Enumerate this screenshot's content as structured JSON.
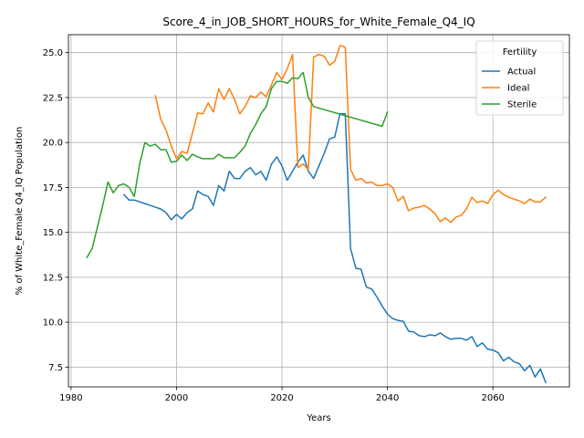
{
  "chart_data": {
    "type": "line",
    "title": "Score_4_in_JOB_SHORT_HOURS_for_White_Female_Q4_IQ",
    "xlabel": "Years",
    "ylabel": "% of White_Female Q4_IQ Population",
    "xlim": [
      1979.5,
      2074.5
    ],
    "ylim": [
      6.4,
      26.0
    ],
    "xticks": [
      1980,
      2000,
      2020,
      2040,
      2060
    ],
    "yticks": [
      7.5,
      10.0,
      12.5,
      15.0,
      17.5,
      20.0,
      22.5,
      25.0
    ],
    "ytick_labels": [
      "7.5",
      "10.0",
      "12.5",
      "15.0",
      "17.5",
      "20.0",
      "22.5",
      "25.0"
    ],
    "grid": true,
    "legend": {
      "title": "Fertility",
      "placement": "top-right"
    },
    "series": [
      {
        "name": "Actual",
        "color": "#1f77b4",
        "x": [
          1990,
          1991,
          1992,
          1993,
          1994,
          1995,
          1996,
          1997,
          1998,
          1999,
          2000,
          2001,
          2002,
          2003,
          2004,
          2005,
          2006,
          2007,
          2008,
          2009,
          2010,
          2011,
          2012,
          2013,
          2014,
          2015,
          2016,
          2017,
          2018,
          2019,
          2020,
          2021,
          2022,
          2023,
          2024,
          2025,
          2026,
          2027,
          2028,
          2029,
          2030,
          2031,
          2032,
          2033,
          2034,
          2035,
          2036,
          2037,
          2038,
          2039,
          2040,
          2041,
          2042,
          2043,
          2044,
          2045,
          2046,
          2047,
          2048,
          2049,
          2050,
          2051,
          2052,
          2053,
          2054,
          2055,
          2056,
          2057,
          2058,
          2059,
          2060,
          2061,
          2062,
          2063,
          2064,
          2065,
          2066,
          2067,
          2068,
          2069,
          2070
        ],
        "y": [
          17.1,
          16.8,
          16.8,
          16.7,
          16.6,
          16.5,
          16.4,
          16.3,
          16.1,
          15.7,
          16.0,
          15.75,
          16.1,
          16.3,
          17.3,
          17.1,
          17.0,
          16.5,
          17.6,
          17.3,
          18.4,
          18.0,
          18.0,
          18.4,
          18.6,
          18.2,
          18.4,
          17.9,
          18.8,
          19.2,
          18.7,
          17.9,
          18.4,
          18.9,
          19.3,
          18.4,
          18.0,
          18.7,
          19.4,
          20.2,
          20.3,
          21.6,
          21.6,
          14.1,
          13.0,
          12.95,
          11.95,
          11.85,
          11.4,
          10.9,
          10.45,
          10.2,
          10.1,
          10.05,
          9.5,
          9.45,
          9.25,
          9.2,
          9.3,
          9.25,
          9.4,
          9.2,
          9.05,
          9.1,
          9.1,
          9.0,
          9.2,
          8.65,
          8.85,
          8.5,
          8.45,
          8.3,
          7.85,
          8.05,
          7.8,
          7.7,
          7.3,
          7.6,
          6.95,
          7.4,
          6.65
        ]
      },
      {
        "name": "Ideal",
        "color": "#ff7f0e",
        "x": [
          1996,
          1997,
          1998,
          1999,
          2000,
          2001,
          2002,
          2003,
          2004,
          2005,
          2006,
          2007,
          2008,
          2009,
          2010,
          2011,
          2012,
          2013,
          2014,
          2015,
          2016,
          2017,
          2018,
          2019,
          2020,
          2021,
          2022,
          2023,
          2024,
          2025,
          2026,
          2027,
          2028,
          2029,
          2030,
          2031,
          2032,
          2033,
          2034,
          2035,
          2036,
          2037,
          2038,
          2039,
          2040,
          2041,
          2042,
          2043,
          2044,
          2045,
          2046,
          2047,
          2048,
          2049,
          2050,
          2051,
          2052,
          2053,
          2054,
          2055,
          2056,
          2057,
          2058,
          2059,
          2060,
          2061,
          2062,
          2063,
          2064,
          2065,
          2066,
          2067,
          2068,
          2069,
          2070
        ],
        "y": [
          22.6,
          21.3,
          20.7,
          19.8,
          19.1,
          19.5,
          19.4,
          20.5,
          21.65,
          21.6,
          22.2,
          21.7,
          23.0,
          22.4,
          23.0,
          22.4,
          21.6,
          22.0,
          22.6,
          22.5,
          22.8,
          22.55,
          23.2,
          23.9,
          23.5,
          24.1,
          24.9,
          18.6,
          18.8,
          18.5,
          24.75,
          24.9,
          24.8,
          24.3,
          24.5,
          25.4,
          25.3,
          18.5,
          17.9,
          18.0,
          17.75,
          17.8,
          17.6,
          17.6,
          17.7,
          17.5,
          16.75,
          17.0,
          16.2,
          16.35,
          16.4,
          16.5,
          16.3,
          16.05,
          15.6,
          15.8,
          15.55,
          15.85,
          15.95,
          16.3,
          16.95,
          16.65,
          16.75,
          16.6,
          17.1,
          17.35,
          17.1,
          16.95,
          16.85,
          16.75,
          16.6,
          16.85,
          16.7,
          16.7,
          16.95
        ]
      },
      {
        "name": "Sterile",
        "color": "#2ca02c",
        "x": [
          1983,
          1984,
          1985,
          1986,
          1987,
          1988,
          1989,
          1990,
          1991,
          1992,
          1993,
          1994,
          1995,
          1996,
          1997,
          1998,
          1999,
          2000,
          2001,
          2002,
          2003,
          2004,
          2005,
          2006,
          2007,
          2008,
          2009,
          2010,
          2011,
          2012,
          2013,
          2014,
          2015,
          2016,
          2017,
          2018,
          2019,
          2020,
          2021,
          2022,
          2023,
          2024,
          2025,
          2026,
          2039,
          2040
        ],
        "y": [
          13.6,
          14.1,
          15.3,
          16.5,
          17.8,
          17.2,
          17.6,
          17.7,
          17.5,
          17.0,
          18.8,
          20.0,
          19.8,
          19.9,
          19.6,
          19.6,
          18.9,
          18.95,
          19.3,
          19.0,
          19.35,
          19.2,
          19.1,
          19.1,
          19.1,
          19.35,
          19.15,
          19.15,
          19.15,
          19.45,
          19.8,
          20.5,
          21.0,
          21.6,
          22.0,
          23.0,
          23.4,
          23.4,
          23.3,
          23.6,
          23.55,
          23.9,
          22.5,
          22.0,
          20.9,
          21.7
        ]
      }
    ]
  }
}
